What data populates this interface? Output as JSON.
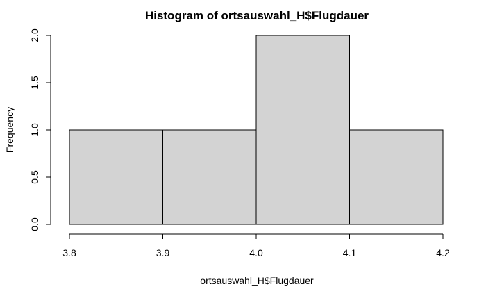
{
  "chart_data": {
    "type": "bar",
    "subtype": "histogram",
    "title": "Histogram of ortsauswahl_H$Flugdauer",
    "xlabel": "ortsauswahl_H$Flugdauer",
    "ylabel": "Frequency",
    "bins": [
      {
        "from": 3.8,
        "to": 3.9,
        "count": 1
      },
      {
        "from": 3.9,
        "to": 4.0,
        "count": 1
      },
      {
        "from": 4.0,
        "to": 4.1,
        "count": 2
      },
      {
        "from": 4.1,
        "to": 4.2,
        "count": 1
      }
    ],
    "xlim": [
      3.8,
      4.2
    ],
    "ylim": [
      0,
      2
    ],
    "x_ticks": [
      "3.8",
      "3.9",
      "4.0",
      "4.1",
      "4.2"
    ],
    "y_ticks": [
      "0.0",
      "0.5",
      "1.0",
      "1.5",
      "2.0"
    ],
    "bar_color": "#d3d3d3",
    "grid": false,
    "legend": "none"
  }
}
